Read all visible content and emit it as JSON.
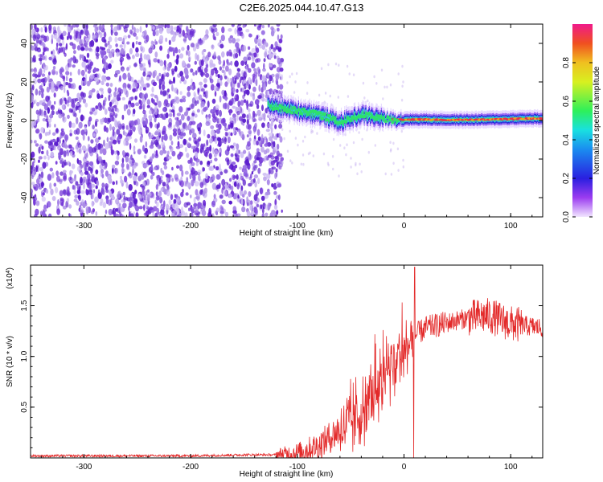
{
  "title": "C2E6.2025.044.10.47.G13",
  "colors": {
    "scatter_palette": [
      "#c9b6f2",
      "#a98ae6",
      "#8a5be0",
      "#6f2fd6",
      "#5a1ccc"
    ],
    "doppler_core": "#e8304a",
    "doppler_mid": "#2ee06a",
    "doppler_edge": "#2fd8e8",
    "doppler_outer": "#1a2bd6",
    "snr_line": "#e32a2a"
  },
  "chart_data": [
    {
      "type": "heatmap",
      "name": "frequency-spectrogram",
      "xlabel": "Height of straight line (km)",
      "ylabel": "Frequency (Hz)",
      "xlim": [
        -350,
        130
      ],
      "ylim": [
        -50,
        50
      ],
      "x_ticks": [
        -300,
        -200,
        -100,
        0,
        100
      ],
      "y_ticks": [
        -40,
        -20,
        0,
        20,
        40
      ],
      "noise_region_x": [
        -350,
        -120
      ],
      "signal_track": {
        "x": [
          -130,
          -120,
          -110,
          -100,
          -90,
          -80,
          -70,
          -60,
          -50,
          -40,
          -30,
          -20,
          -10,
          0,
          20,
          40,
          60,
          80,
          100,
          120,
          130
        ],
        "freq": [
          8,
          7,
          6,
          5,
          4,
          3,
          1,
          -1,
          1,
          3,
          2,
          1,
          0.5,
          0.5,
          0.5,
          0.3,
          0.3,
          0.5,
          0.8,
          1,
          1
        ]
      },
      "colorbar": {
        "label": "Normalized spectral amplitude",
        "range": [
          0,
          1
        ],
        "ticks": [
          "0.0",
          "0.2",
          "0.4",
          "0.6",
          "0.8"
        ]
      }
    },
    {
      "type": "line",
      "name": "snr-profile",
      "xlabel": "Height of straight line (km)",
      "ylabel": "SNR (10 * v/v)",
      "y_multiplier": "(x10^4)",
      "xlim": [
        -350,
        130
      ],
      "ylim": [
        0,
        1.9
      ],
      "x_ticks": [
        -300,
        -200,
        -100,
        0,
        100
      ],
      "y_ticks": [
        "0.5",
        "1.0",
        "1.5"
      ],
      "x": [
        -350,
        -300,
        -200,
        -150,
        -120,
        -100,
        -80,
        -60,
        -50,
        -40,
        -30,
        -20,
        -10,
        0,
        10,
        20,
        40,
        60,
        80,
        100,
        130
      ],
      "y": [
        0.02,
        0.02,
        0.02,
        0.03,
        0.03,
        0.05,
        0.12,
        0.28,
        0.35,
        0.45,
        0.6,
        0.75,
        0.9,
        1.05,
        1.2,
        1.28,
        1.33,
        1.38,
        1.4,
        1.32,
        1.28
      ],
      "spike": {
        "x": 10,
        "y": 1.88
      },
      "dropout": {
        "x": 9,
        "y": 0.0
      }
    }
  ]
}
